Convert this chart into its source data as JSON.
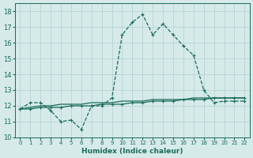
{
  "xlabel": "Humidex (Indice chaleur)",
  "ylabel": "",
  "xlim": [
    -0.5,
    22.5
  ],
  "ylim": [
    10,
    18.5
  ],
  "yticks": [
    10,
    11,
    12,
    13,
    14,
    15,
    16,
    17,
    18
  ],
  "xticks": [
    0,
    1,
    2,
    3,
    4,
    5,
    6,
    7,
    8,
    9,
    10,
    11,
    12,
    13,
    14,
    15,
    16,
    17,
    18,
    19,
    20,
    21,
    22
  ],
  "bg_color": "#d6eaea",
  "line_color": "#1a6b5a",
  "grid_color": "#b0d0d0",
  "line1_x": [
    0,
    1,
    2,
    3,
    4,
    5,
    6,
    7,
    8,
    9,
    10,
    11,
    12,
    13,
    14,
    15,
    16,
    17,
    18,
    19,
    20,
    21,
    22
  ],
  "line1_y": [
    11.8,
    12.2,
    12.2,
    11.7,
    11.0,
    11.1,
    10.5,
    12.0,
    12.0,
    12.5,
    16.5,
    17.3,
    17.8,
    16.5,
    17.2,
    16.5,
    15.8,
    15.2,
    13.0,
    12.2,
    12.3,
    12.3,
    12.3
  ],
  "line2_x": [
    0,
    1,
    2,
    3,
    4,
    5,
    6,
    7,
    8,
    9,
    10,
    11,
    12,
    13,
    14,
    15,
    16,
    17,
    18,
    19,
    20,
    21,
    22
  ],
  "line2_y": [
    11.8,
    11.8,
    11.9,
    11.9,
    11.9,
    12.0,
    12.0,
    12.0,
    12.1,
    12.1,
    12.1,
    12.2,
    12.2,
    12.3,
    12.3,
    12.3,
    12.4,
    12.4,
    12.4,
    12.5,
    12.5,
    12.5,
    12.5
  ],
  "line3_x": [
    0,
    1,
    2,
    3,
    4,
    5,
    6,
    7,
    8,
    9,
    10,
    11,
    12,
    13,
    14,
    15,
    16,
    17,
    18,
    19,
    20,
    21,
    22
  ],
  "line3_y": [
    11.8,
    11.9,
    12.0,
    12.0,
    12.1,
    12.1,
    12.1,
    12.2,
    12.2,
    12.2,
    12.3,
    12.3,
    12.3,
    12.4,
    12.4,
    12.4,
    12.4,
    12.5,
    12.5,
    12.5,
    12.5,
    12.5,
    12.5
  ]
}
